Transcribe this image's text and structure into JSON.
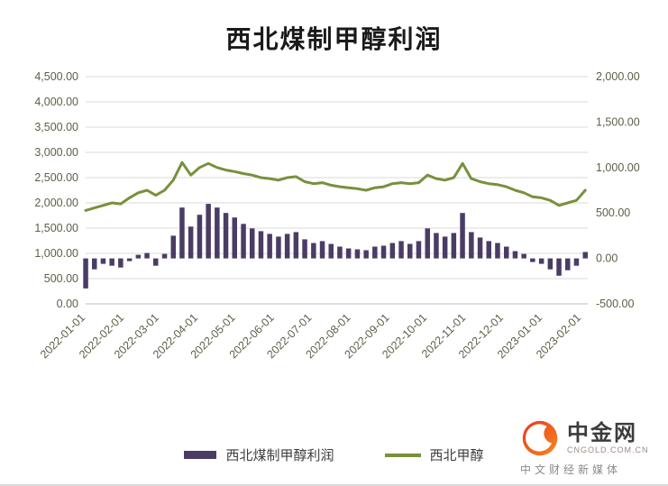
{
  "title": "西北煤制甲醇利润",
  "colors": {
    "bar": "#4b3c66",
    "line": "#77913c",
    "grid": "#d9d9d9",
    "axis_line": "#bfbfbf",
    "axis_text": "#5e5e48",
    "logo_red": "#e8391f",
    "logo_orange": "#f6881f"
  },
  "legend": {
    "bar_label": "西北煤制甲醇利润",
    "line_label": "西北甲醇"
  },
  "logo": {
    "name": "中金网",
    "domain": "CNGOLD.COM.CN",
    "tagline": "中文财经新媒体"
  },
  "chart_data": {
    "type": "bar",
    "subtype": "bar+line combo, dual axis",
    "title": "西北煤制甲醇利润",
    "xlabel": "",
    "ylabel": "",
    "grid": true,
    "legend_position": "bottom",
    "left_axis": {
      "min": 0,
      "max": 4500,
      "step": 500,
      "ticks": [
        "4,500.00",
        "4,000.00",
        "3,500.00",
        "3,000.00",
        "2,500.00",
        "2,000.00",
        "1,500.00",
        "1,000.00",
        "500.00",
        "0.00"
      ]
    },
    "right_axis": {
      "min": -500,
      "max": 2000,
      "step": 500,
      "ticks": [
        "2,000.00",
        "1,500.00",
        "1,000.00",
        "500.00",
        "0.00",
        "-500.00"
      ]
    },
    "x_ticks": [
      "2022-01-01",
      "2022-02-01",
      "2022-03-01",
      "2022-04-01",
      "2022-05-01",
      "2022-06-01",
      "2022-07-01",
      "2022-08-01",
      "2022-09-01",
      "2022-10-01",
      "2022-11-01",
      "2022-12-01",
      "2023-01-01",
      "2023-02-01"
    ],
    "x": [
      "2022-01-01",
      "2022-01-08",
      "2022-01-15",
      "2022-01-22",
      "2022-01-29",
      "2022-02-05",
      "2022-02-12",
      "2022-02-19",
      "2022-02-26",
      "2022-03-05",
      "2022-03-12",
      "2022-03-19",
      "2022-03-26",
      "2022-04-02",
      "2022-04-09",
      "2022-04-16",
      "2022-04-23",
      "2022-04-30",
      "2022-05-07",
      "2022-05-14",
      "2022-05-21",
      "2022-05-28",
      "2022-06-04",
      "2022-06-11",
      "2022-06-18",
      "2022-06-25",
      "2022-07-02",
      "2022-07-09",
      "2022-07-16",
      "2022-07-23",
      "2022-07-30",
      "2022-08-06",
      "2022-08-13",
      "2022-08-20",
      "2022-08-27",
      "2022-09-03",
      "2022-09-10",
      "2022-09-17",
      "2022-09-24",
      "2022-10-01",
      "2022-10-08",
      "2022-10-15",
      "2022-10-22",
      "2022-10-29",
      "2022-11-05",
      "2022-11-12",
      "2022-11-19",
      "2022-11-26",
      "2022-12-03",
      "2022-12-10",
      "2022-12-17",
      "2022-12-24",
      "2022-12-31",
      "2023-01-07",
      "2023-01-14",
      "2023-01-21",
      "2023-01-28",
      "2023-02-04"
    ],
    "series": [
      {
        "name": "西北煤制甲醇利润",
        "type": "bar",
        "axis": "right",
        "color": "#4b3c66",
        "values": [
          -330,
          -120,
          -60,
          -80,
          -100,
          -30,
          40,
          60,
          -80,
          50,
          250,
          560,
          350,
          480,
          600,
          560,
          500,
          450,
          380,
          330,
          300,
          270,
          240,
          270,
          290,
          210,
          170,
          190,
          160,
          130,
          110,
          100,
          90,
          130,
          140,
          170,
          190,
          160,
          190,
          330,
          280,
          240,
          280,
          500,
          290,
          230,
          190,
          170,
          130,
          80,
          50,
          -40,
          -60,
          -120,
          -190,
          -130,
          -80,
          70
        ]
      },
      {
        "name": "西北甲醇",
        "type": "line",
        "axis": "left",
        "color": "#77913c",
        "values": [
          1850,
          1900,
          1950,
          2000,
          1980,
          2100,
          2200,
          2250,
          2150,
          2250,
          2450,
          2800,
          2550,
          2700,
          2780,
          2700,
          2650,
          2620,
          2580,
          2550,
          2500,
          2480,
          2450,
          2500,
          2520,
          2420,
          2380,
          2400,
          2350,
          2320,
          2300,
          2280,
          2250,
          2300,
          2320,
          2380,
          2400,
          2380,
          2400,
          2550,
          2480,
          2450,
          2500,
          2780,
          2480,
          2420,
          2380,
          2360,
          2320,
          2250,
          2200,
          2120,
          2100,
          2050,
          1950,
          2000,
          2050,
          2250
        ]
      }
    ]
  }
}
